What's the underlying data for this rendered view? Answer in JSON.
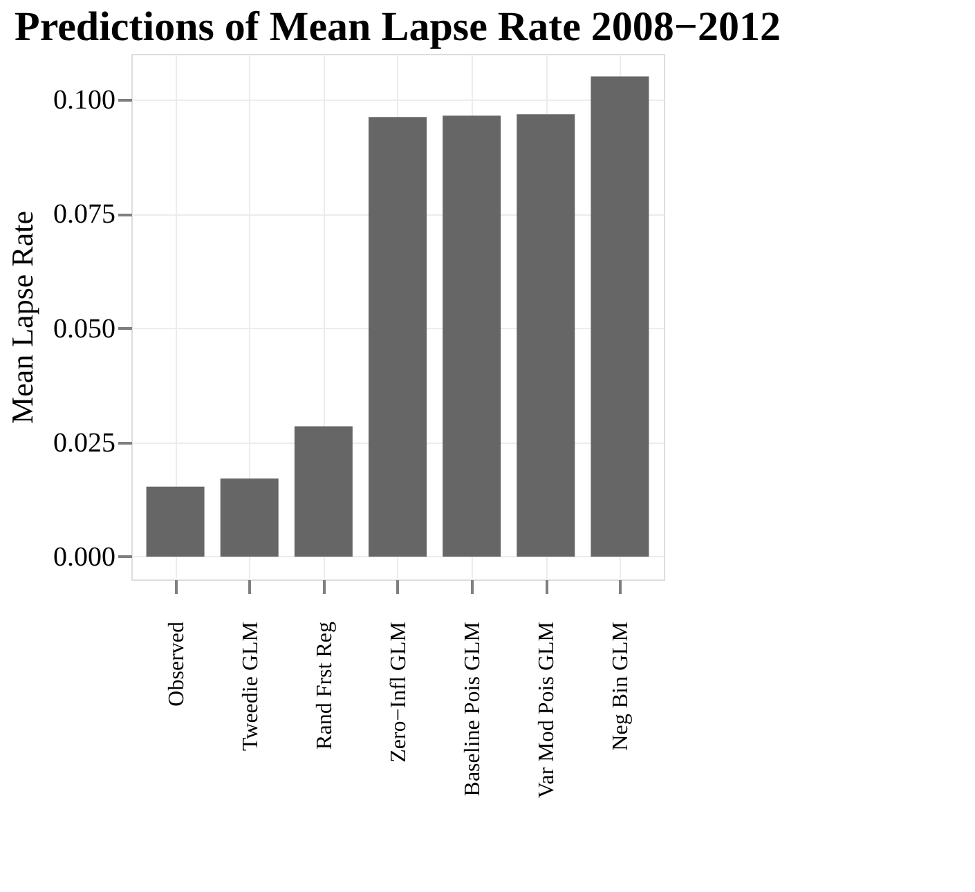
{
  "chart_data": {
    "type": "bar",
    "title": "Predictions of Mean Lapse Rate 2008−2012",
    "ylabel": "Mean Lapse Rate",
    "categories": [
      "Observed",
      "Tweedie GLM",
      "Rand Frst Reg",
      "Zero−Infl GLM",
      "Baseline Pois GLM",
      "Var Mod Pois GLM",
      "Neg Bin GLM"
    ],
    "values": [
      0.0153,
      0.0171,
      0.0285,
      0.0962,
      0.0965,
      0.0968,
      0.1051
    ],
    "color": "#666666",
    "ylim": [
      -0.005,
      0.11
    ],
    "yticks": [
      {
        "value": 0,
        "label": "0.000"
      },
      {
        "value": 0.025,
        "label": "0.025"
      },
      {
        "value": 0.05,
        "label": "0.050"
      },
      {
        "value": 0.075,
        "label": "0.075"
      },
      {
        "value": 0.1,
        "label": "0.100"
      }
    ],
    "grid": true
  }
}
